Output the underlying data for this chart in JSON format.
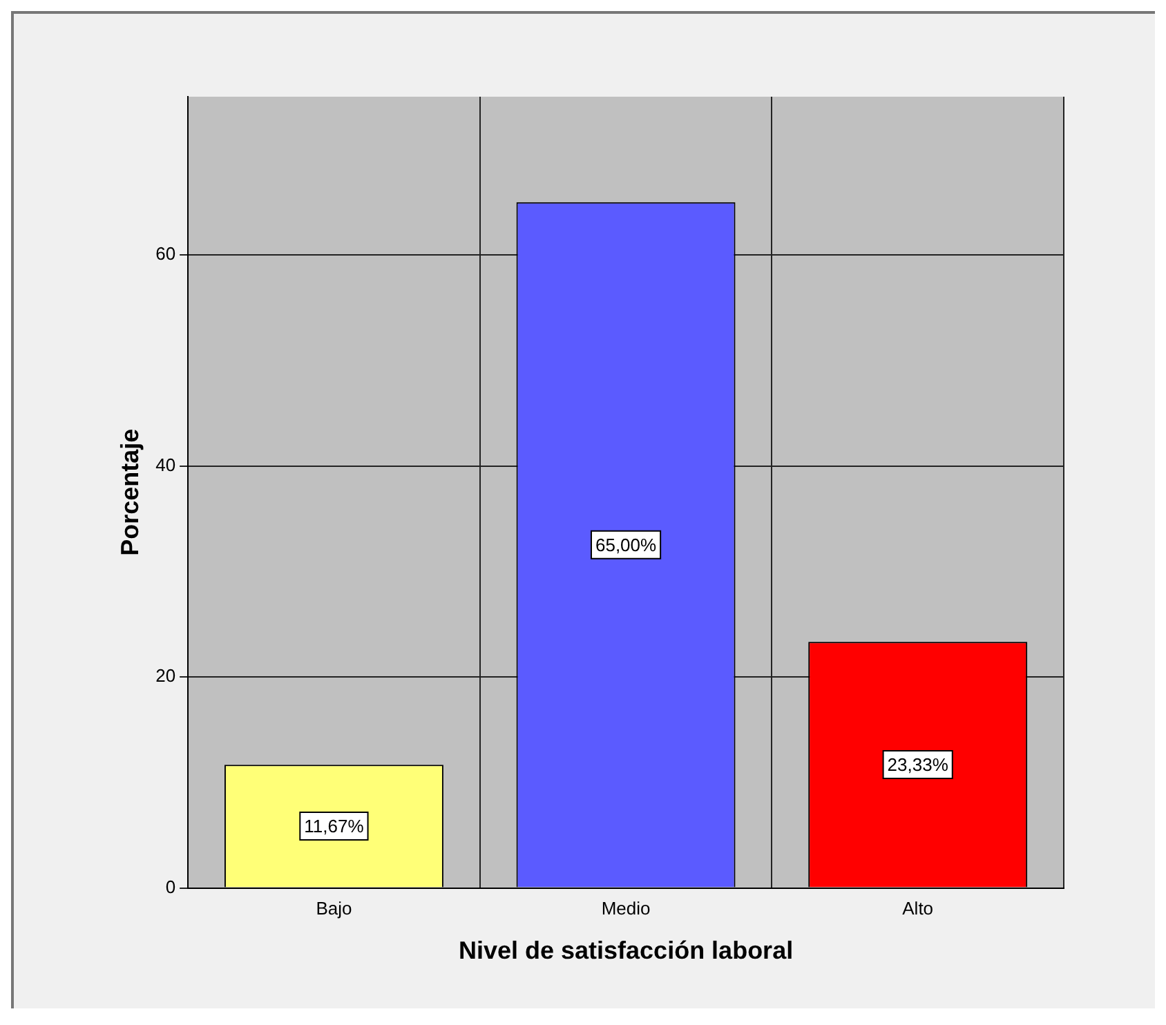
{
  "chart_data": {
    "type": "bar",
    "xlabel": "Nivel de satisfacción laboral",
    "ylabel": "Porcentaje",
    "categories": [
      "Bajo",
      "Medio",
      "Alto"
    ],
    "values": [
      11.67,
      65,
      23.33
    ],
    "colors": [
      "#ffff77",
      "#5b5bff",
      "#ff0000"
    ],
    "value_labels": [
      "11,67%",
      "65,00%",
      "23,33%"
    ],
    "ylim": [
      0,
      75
    ],
    "yticks": [
      0,
      20,
      40,
      60
    ],
    "grid": true,
    "legend": false
  }
}
